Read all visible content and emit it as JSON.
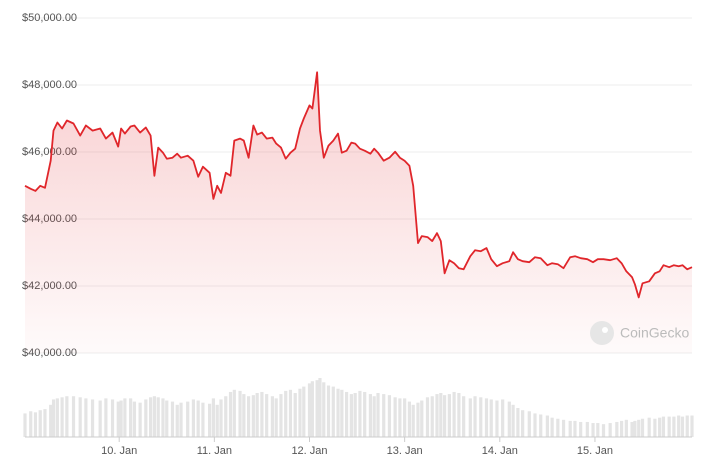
{
  "chart_data": {
    "type": "line",
    "x": [
      9.01,
      9.07,
      9.12,
      9.17,
      9.22,
      9.28,
      9.31,
      9.35,
      9.4,
      9.45,
      9.52,
      9.59,
      9.65,
      9.72,
      9.8,
      9.86,
      9.93,
      9.99,
      10.02,
      10.06,
      10.12,
      10.16,
      10.22,
      10.28,
      10.33,
      10.37,
      10.41,
      10.46,
      10.5,
      10.56,
      10.61,
      10.65,
      10.72,
      10.78,
      10.83,
      10.88,
      10.95,
      10.99,
      11.03,
      11.07,
      11.12,
      11.17,
      11.21,
      11.27,
      11.31,
      11.36,
      11.41,
      11.45,
      11.5,
      11.55,
      11.61,
      11.65,
      11.7,
      11.75,
      11.8,
      11.85,
      11.9,
      11.94,
      12.0,
      12.03,
      12.08,
      12.11,
      12.15,
      12.2,
      12.25,
      12.3,
      12.34,
      12.39,
      12.44,
      12.48,
      12.53,
      12.58,
      12.64,
      12.68,
      12.72,
      12.78,
      12.84,
      12.9,
      12.95,
      13.0,
      13.05,
      13.09,
      13.14,
      13.18,
      13.24,
      13.29,
      13.34,
      13.38,
      13.42,
      13.47,
      13.52,
      13.57,
      13.62,
      13.69,
      13.74,
      13.8,
      13.86,
      13.91,
      13.97,
      14.03,
      14.1,
      14.14,
      14.19,
      14.24,
      14.31,
      14.37,
      14.43,
      14.5,
      14.55,
      14.61,
      14.67,
      14.74,
      14.79,
      14.85,
      14.92,
      14.98,
      15.03,
      15.09,
      15.16,
      15.23,
      15.28,
      15.33,
      15.39,
      15.42,
      15.46,
      15.5,
      15.57,
      15.63,
      15.68,
      15.72,
      15.78,
      15.83,
      15.88,
      15.92,
      15.97,
      16.02
    ],
    "series": [
      {
        "color": "#e0262b",
        "values": [
          44990,
          44900,
          44840,
          44990,
          44930,
          45740,
          46640,
          46880,
          46700,
          46940,
          46850,
          46490,
          46790,
          46640,
          46700,
          46400,
          46580,
          46160,
          46700,
          46550,
          46760,
          46790,
          46580,
          46730,
          46490,
          45290,
          46130,
          45980,
          45800,
          45830,
          45950,
          45830,
          45890,
          45740,
          45260,
          45560,
          45380,
          44600,
          44990,
          44780,
          45380,
          45290,
          46340,
          46400,
          46340,
          45830,
          46790,
          46520,
          46580,
          46400,
          46430,
          46250,
          46130,
          45800,
          45980,
          46100,
          46700,
          47000,
          47390,
          47300,
          48380,
          46640,
          45830,
          46190,
          46340,
          46550,
          45980,
          46040,
          46280,
          46250,
          46100,
          46040,
          45950,
          46100,
          45980,
          45740,
          45830,
          46010,
          45830,
          45740,
          45590,
          44990,
          43280,
          43490,
          43460,
          43340,
          43580,
          43340,
          42380,
          42770,
          42680,
          42530,
          42500,
          42890,
          43070,
          43040,
          43130,
          42800,
          42590,
          42680,
          42740,
          43010,
          42800,
          42740,
          42710,
          42860,
          42830,
          42620,
          42680,
          42650,
          42530,
          42860,
          42890,
          42830,
          42800,
          42710,
          42800,
          42800,
          42770,
          42830,
          42680,
          42440,
          42260,
          42050,
          41660,
          42080,
          42140,
          42380,
          42440,
          42620,
          42560,
          42620,
          42590,
          42620,
          42500,
          42560
        ]
      }
    ],
    "volume": {
      "color": "#e4e4e4",
      "values": [
        22,
        24,
        23,
        25,
        26,
        30,
        35,
        36,
        37,
        38,
        38,
        37,
        36,
        35,
        34,
        36,
        35,
        33,
        34,
        36,
        36,
        33,
        32,
        35,
        37,
        38,
        37,
        36,
        34,
        33,
        30,
        32,
        33,
        35,
        34,
        32,
        31,
        36,
        30,
        35,
        38,
        42,
        44,
        43,
        40,
        38,
        39,
        41,
        42,
        40,
        38,
        36,
        40,
        43,
        44,
        41,
        45,
        47,
        50,
        52,
        53,
        55,
        51,
        48,
        47,
        45,
        44,
        42,
        40,
        41,
        43,
        42,
        40,
        38,
        41,
        40,
        39,
        37,
        36,
        36,
        33,
        30,
        32,
        34,
        37,
        38,
        40,
        41,
        39,
        40,
        42,
        41,
        38,
        36,
        38,
        37,
        36,
        35,
        34,
        35,
        33,
        30,
        27,
        25,
        24,
        22,
        21,
        20,
        18,
        17,
        16,
        15,
        15,
        14,
        14,
        13,
        13,
        12,
        13,
        14,
        15,
        16,
        14,
        15,
        16,
        17,
        18,
        17,
        18,
        19,
        19,
        19,
        20,
        19,
        20,
        20
      ]
    },
    "xlim": [
      9.01,
      16.02
    ],
    "xticks": [
      {
        "value": 10,
        "label": "10. Jan"
      },
      {
        "value": 11,
        "label": "11. Jan"
      },
      {
        "value": 12,
        "label": "12. Jan"
      },
      {
        "value": 13,
        "label": "13. Jan"
      },
      {
        "value": 14,
        "label": "14. Jan"
      },
      {
        "value": 15,
        "label": "15. Jan"
      }
    ],
    "ylim": [
      40000,
      50000
    ],
    "yticks": [
      {
        "value": 40000,
        "label": "$40,000.00"
      },
      {
        "value": 42000,
        "label": "$42,000.00"
      },
      {
        "value": 44000,
        "label": "$44,000.00"
      },
      {
        "value": 46000,
        "label": "$46,000.00"
      },
      {
        "value": 48000,
        "label": "$48,000.00"
      },
      {
        "value": 50000,
        "label": "$50,000.00"
      }
    ],
    "grid": true,
    "watermark": "CoinGecko"
  }
}
